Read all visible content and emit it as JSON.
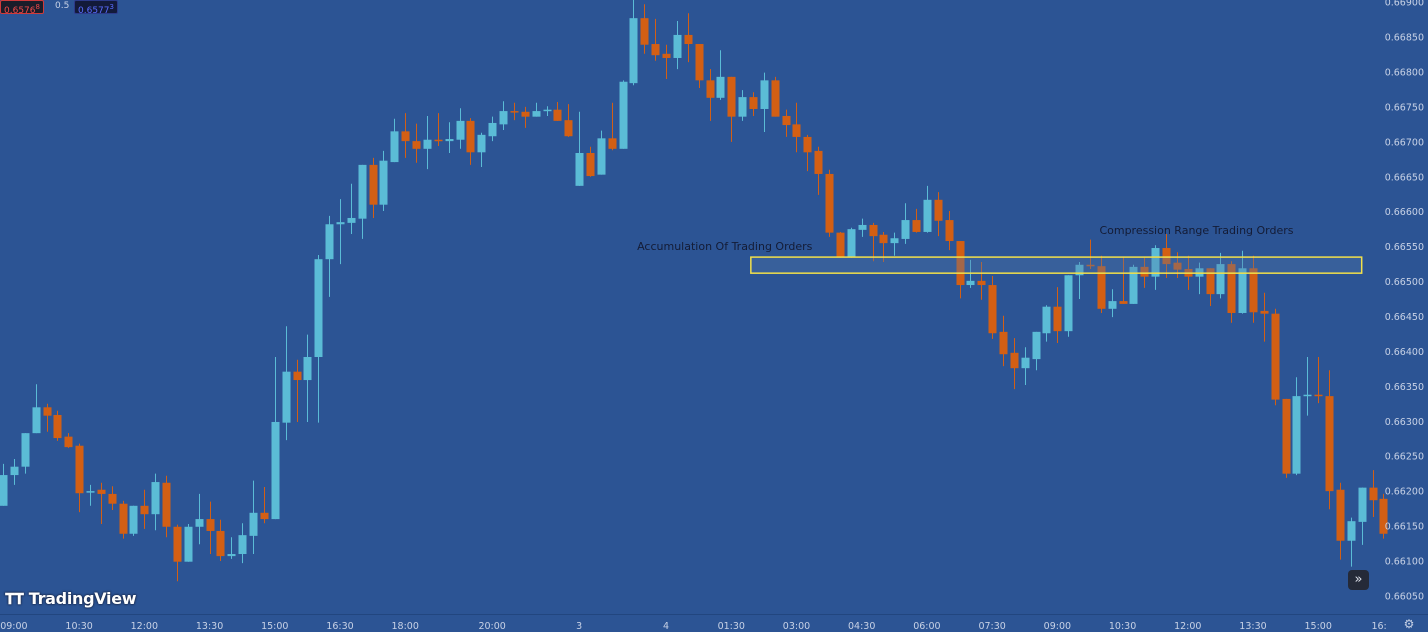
{
  "quote_bar": {
    "bid": "0.6576",
    "bid_sup": "8",
    "spread": "0.5",
    "ask": "0.6577",
    "ask_sup": "3"
  },
  "brand": {
    "name": "TradingView",
    "mark": "17"
  },
  "controls": {
    "scroll_icon": "double-chevron-right-icon",
    "scroll_glyph": "»",
    "settings_icon": "gear-icon",
    "settings_glyph": "⚙"
  },
  "colors": {
    "background": "#2c5494",
    "up": "#5bbcd6",
    "down": "#d35f14",
    "annotation_box": "#f2e04a",
    "annotation_text": "#141c36",
    "axis_text": "#c8d2e6"
  },
  "chart_data": {
    "type": "candlestick",
    "x_unit": "bar index",
    "ylim": [
      0.66027,
      0.66903
    ],
    "xlim": [
      -0.28,
      131.1
    ],
    "grid": false,
    "y_ticks": [
      "0.66050",
      "0.66100",
      "0.66150",
      "0.66200",
      "0.66250",
      "0.66300",
      "0.66350",
      "0.66400",
      "0.66450",
      "0.66500",
      "0.66550",
      "0.66600",
      "0.66650",
      "0.66700",
      "0.66750",
      "0.66800",
      "0.66850",
      "0.66900"
    ],
    "x_ticks": [
      {
        "bar": 1,
        "label": "09:00"
      },
      {
        "bar": 7,
        "label": "10:30"
      },
      {
        "bar": 13,
        "label": "12:00"
      },
      {
        "bar": 19,
        "label": "13:30"
      },
      {
        "bar": 25,
        "label": "15:00"
      },
      {
        "bar": 31,
        "label": "16:30"
      },
      {
        "bar": 37,
        "label": "18:00"
      },
      {
        "bar": 45,
        "label": "20:00"
      },
      {
        "bar": 53,
        "label": "3"
      },
      {
        "bar": 61,
        "label": "4"
      },
      {
        "bar": 67,
        "label": "01:30"
      },
      {
        "bar": 73,
        "label": "03:00"
      },
      {
        "bar": 79,
        "label": "04:30"
      },
      {
        "bar": 85,
        "label": "06:00"
      },
      {
        "bar": 91,
        "label": "07:30"
      },
      {
        "bar": 97,
        "label": "09:00"
      },
      {
        "bar": 103,
        "label": "10:30"
      },
      {
        "bar": 109,
        "label": "12:00"
      },
      {
        "bar": 115,
        "label": "13:30"
      },
      {
        "bar": 121,
        "label": "15:00"
      },
      {
        "bar": 126.6,
        "label": "16:"
      }
    ],
    "ohlc_fields": [
      "open",
      "high",
      "low",
      "close"
    ],
    "candles": [
      [
        0.66179,
        0.66239,
        0.66179,
        0.66223
      ],
      [
        0.66223,
        0.66246,
        0.66209,
        0.66235
      ],
      [
        0.66235,
        0.66283,
        0.66225,
        0.66283
      ],
      [
        0.66283,
        0.66353,
        0.66283,
        0.6632
      ],
      [
        0.6632,
        0.66325,
        0.66285,
        0.66308
      ],
      [
        0.66309,
        0.66315,
        0.66272,
        0.66276
      ],
      [
        0.66278,
        0.66283,
        0.66262,
        0.66263
      ],
      [
        0.66265,
        0.66268,
        0.6617,
        0.66197
      ],
      [
        0.66199,
        0.66209,
        0.66179,
        0.662
      ],
      [
        0.66202,
        0.66212,
        0.66153,
        0.66196
      ],
      [
        0.66196,
        0.66207,
        0.66173,
        0.66182
      ],
      [
        0.66182,
        0.66186,
        0.66132,
        0.66139
      ],
      [
        0.66139,
        0.66179,
        0.66136,
        0.66179
      ],
      [
        0.66179,
        0.66202,
        0.66146,
        0.66167
      ],
      [
        0.66167,
        0.66225,
        0.66144,
        0.66213
      ],
      [
        0.66212,
        0.66222,
        0.66134,
        0.66149
      ],
      [
        0.66149,
        0.66152,
        0.66071,
        0.66099
      ],
      [
        0.66099,
        0.66153,
        0.66099,
        0.66149
      ],
      [
        0.66149,
        0.66196,
        0.66124,
        0.6616
      ],
      [
        0.6616,
        0.66185,
        0.6611,
        0.66143
      ],
      [
        0.66143,
        0.66159,
        0.661,
        0.66107
      ],
      [
        0.66107,
        0.66134,
        0.66103,
        0.6611
      ],
      [
        0.6611,
        0.66154,
        0.66097,
        0.66137
      ],
      [
        0.66136,
        0.66215,
        0.6611,
        0.66169
      ],
      [
        0.66169,
        0.66206,
        0.66154,
        0.6616
      ],
      [
        0.6616,
        0.66392,
        0.6616,
        0.66299
      ],
      [
        0.66298,
        0.66436,
        0.66273,
        0.66371
      ],
      [
        0.66371,
        0.66388,
        0.66299,
        0.66359
      ],
      [
        0.66359,
        0.66424,
        0.66299,
        0.66392
      ],
      [
        0.66392,
        0.66538,
        0.66298,
        0.66532
      ],
      [
        0.66532,
        0.66594,
        0.66478,
        0.66582
      ],
      [
        0.66582,
        0.66618,
        0.66525,
        0.66585
      ],
      [
        0.66584,
        0.6664,
        0.66568,
        0.66591
      ],
      [
        0.6659,
        0.66667,
        0.66561,
        0.66667
      ],
      [
        0.66667,
        0.66677,
        0.66591,
        0.6661
      ],
      [
        0.6661,
        0.66687,
        0.66601,
        0.66673
      ],
      [
        0.66671,
        0.66733,
        0.66671,
        0.66715
      ],
      [
        0.66715,
        0.66741,
        0.66677,
        0.66701
      ],
      [
        0.66701,
        0.66726,
        0.6667,
        0.6669
      ],
      [
        0.6669,
        0.66737,
        0.66661,
        0.66703
      ],
      [
        0.66703,
        0.66741,
        0.66694,
        0.66701
      ],
      [
        0.66701,
        0.66728,
        0.66684,
        0.66704
      ],
      [
        0.66703,
        0.66748,
        0.6669,
        0.6673
      ],
      [
        0.6673,
        0.66734,
        0.66667,
        0.66685
      ],
      [
        0.66685,
        0.66713,
        0.66664,
        0.6671
      ],
      [
        0.66708,
        0.66736,
        0.66701,
        0.66727
      ],
      [
        0.66725,
        0.66758,
        0.66717,
        0.66744
      ],
      [
        0.66744,
        0.66756,
        0.66731,
        0.66743
      ],
      [
        0.66743,
        0.6675,
        0.6672,
        0.66736
      ],
      [
        0.66736,
        0.66756,
        0.66736,
        0.66744
      ],
      [
        0.66744,
        0.66751,
        0.66737,
        0.66746
      ],
      [
        0.66746,
        0.66757,
        0.6673,
        0.6673
      ],
      [
        0.66731,
        0.66754,
        0.66707,
        0.66708
      ],
      [
        0.66637,
        0.66743,
        0.66637,
        0.66684
      ],
      [
        0.66684,
        0.66693,
        0.6665,
        0.66651
      ],
      [
        0.66653,
        0.66716,
        0.66653,
        0.66705
      ],
      [
        0.66705,
        0.66756,
        0.66688,
        0.6669
      ],
      [
        0.6669,
        0.66788,
        0.6669,
        0.66786
      ],
      [
        0.66784,
        0.66903,
        0.66781,
        0.66877
      ],
      [
        0.66877,
        0.66897,
        0.66826,
        0.66839
      ],
      [
        0.6684,
        0.66876,
        0.66816,
        0.66824
      ],
      [
        0.66826,
        0.66839,
        0.6679,
        0.6682
      ],
      [
        0.6682,
        0.66873,
        0.66804,
        0.66853
      ],
      [
        0.66853,
        0.66884,
        0.66814,
        0.6684
      ],
      [
        0.6684,
        0.6684,
        0.66777,
        0.66788
      ],
      [
        0.66788,
        0.66804,
        0.6673,
        0.66763
      ],
      [
        0.66763,
        0.66831,
        0.6676,
        0.66793
      ],
      [
        0.66793,
        0.66793,
        0.667,
        0.66736
      ],
      [
        0.66736,
        0.66774,
        0.6673,
        0.66764
      ],
      [
        0.66764,
        0.66771,
        0.66737,
        0.66747
      ],
      [
        0.66747,
        0.66799,
        0.66714,
        0.66788
      ],
      [
        0.66788,
        0.66793,
        0.66736,
        0.66736
      ],
      [
        0.66737,
        0.66746,
        0.66707,
        0.66724
      ],
      [
        0.66725,
        0.66756,
        0.66685,
        0.66707
      ],
      [
        0.66707,
        0.6671,
        0.66658,
        0.66685
      ],
      [
        0.66687,
        0.66693,
        0.66624,
        0.66654
      ],
      [
        0.66654,
        0.6666,
        0.66564,
        0.6657
      ],
      [
        0.6657,
        0.66571,
        0.66534,
        0.66535
      ],
      [
        0.66535,
        0.66577,
        0.66534,
        0.66575
      ],
      [
        0.66574,
        0.6659,
        0.66564,
        0.66581
      ],
      [
        0.66581,
        0.66584,
        0.66529,
        0.66565
      ],
      [
        0.66567,
        0.66571,
        0.66528,
        0.66555
      ],
      [
        0.66555,
        0.6657,
        0.66537,
        0.66562
      ],
      [
        0.66561,
        0.66612,
        0.66554,
        0.66588
      ],
      [
        0.66588,
        0.66604,
        0.6657,
        0.66571
      ],
      [
        0.66571,
        0.66637,
        0.6657,
        0.66617
      ],
      [
        0.66617,
        0.66628,
        0.66565,
        0.66587
      ],
      [
        0.66588,
        0.66601,
        0.66545,
        0.66558
      ],
      [
        0.66558,
        0.66558,
        0.66476,
        0.66495
      ],
      [
        0.66495,
        0.66531,
        0.66491,
        0.66501
      ],
      [
        0.66501,
        0.66528,
        0.66474,
        0.66495
      ],
      [
        0.66495,
        0.66508,
        0.66418,
        0.66426
      ],
      [
        0.66428,
        0.66451,
        0.66379,
        0.66396
      ],
      [
        0.66398,
        0.66419,
        0.66346,
        0.66376
      ],
      [
        0.66376,
        0.66406,
        0.66352,
        0.66391
      ],
      [
        0.66389,
        0.66428,
        0.66373,
        0.66428
      ],
      [
        0.66426,
        0.66466,
        0.66414,
        0.66464
      ],
      [
        0.66464,
        0.66492,
        0.66412,
        0.66429
      ],
      [
        0.66429,
        0.66509,
        0.66421,
        0.66509
      ],
      [
        0.66509,
        0.66528,
        0.66475,
        0.66524
      ],
      [
        0.66524,
        0.6656,
        0.66518,
        0.66522
      ],
      [
        0.66522,
        0.66537,
        0.66455,
        0.66461
      ],
      [
        0.66461,
        0.66489,
        0.66449,
        0.66472
      ],
      [
        0.66472,
        0.66535,
        0.66468,
        0.66468
      ],
      [
        0.66468,
        0.66524,
        0.66468,
        0.66521
      ],
      [
        0.66521,
        0.66534,
        0.66491,
        0.66507
      ],
      [
        0.66507,
        0.66552,
        0.66488,
        0.66548
      ],
      [
        0.66548,
        0.66568,
        0.66505,
        0.66525
      ],
      [
        0.66527,
        0.66542,
        0.66505,
        0.66517
      ],
      [
        0.66518,
        0.66537,
        0.66488,
        0.66507
      ],
      [
        0.66507,
        0.66527,
        0.66482,
        0.66519
      ],
      [
        0.66519,
        0.66519,
        0.66465,
        0.66482
      ],
      [
        0.66482,
        0.66541,
        0.66476,
        0.66525
      ],
      [
        0.66525,
        0.66529,
        0.66441,
        0.66455
      ],
      [
        0.66455,
        0.66544,
        0.66454,
        0.66519
      ],
      [
        0.66519,
        0.66537,
        0.66441,
        0.66456
      ],
      [
        0.66458,
        0.66484,
        0.66414,
        0.66454
      ],
      [
        0.66454,
        0.66461,
        0.66323,
        0.66331
      ],
      [
        0.66332,
        0.66332,
        0.66219,
        0.66225
      ],
      [
        0.66225,
        0.66363,
        0.66223,
        0.66336
      ],
      [
        0.66336,
        0.66392,
        0.66308,
        0.66338
      ],
      [
        0.66338,
        0.66392,
        0.66326,
        0.66336
      ],
      [
        0.66336,
        0.66373,
        0.66174,
        0.662
      ],
      [
        0.66202,
        0.66212,
        0.66102,
        0.66129
      ],
      [
        0.66129,
        0.66162,
        0.66092,
        0.66157
      ],
      [
        0.66156,
        0.66205,
        0.66123,
        0.66205
      ],
      [
        0.66205,
        0.6623,
        0.66163,
        0.66187
      ],
      [
        0.66189,
        0.66196,
        0.66132,
        0.66139
      ]
    ],
    "annotations": {
      "zone": {
        "bar_start": 68.8,
        "bar_end": 125.0,
        "price_top": 0.66535,
        "price_bottom": 0.66512
      },
      "labels": [
        {
          "text": "Accumulation Of Trading Orders",
          "bar": 66.4,
          "price": 0.66551
        },
        {
          "text": "Compression Range Trading Orders",
          "bar": 109.8,
          "price": 0.66574
        }
      ]
    }
  }
}
